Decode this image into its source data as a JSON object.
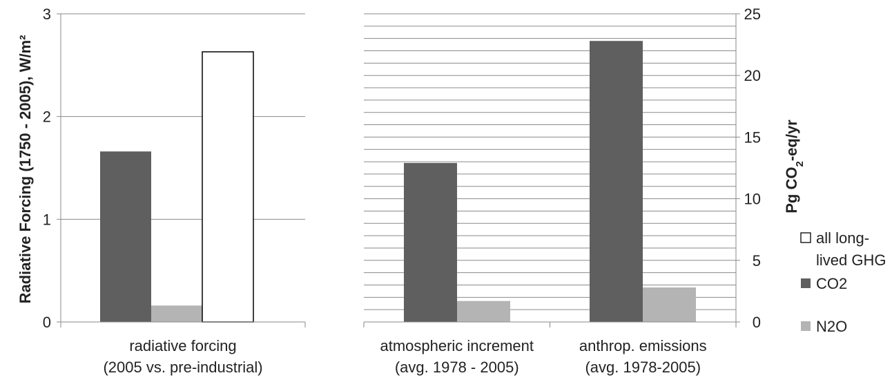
{
  "chart_data": [
    {
      "type": "bar",
      "ylabel": "Radiative Forcing (1750 - 2005), W/m²",
      "ylim": [
        0,
        3
      ],
      "yticks": [
        "0",
        "1",
        "2",
        "3"
      ],
      "grid": true,
      "categories": [
        {
          "line1": "radiative forcing",
          "line2": "(2005 vs. pre-industrial)"
        }
      ],
      "series": [
        {
          "name": "CO2",
          "color": "#5f5f5f",
          "values": [
            1.66
          ]
        },
        {
          "name": "N2O",
          "color": "#b4b4b4",
          "values": [
            0.16
          ]
        },
        {
          "name": "all long-lived GHG",
          "color": "#ffffff",
          "values": [
            2.63
          ]
        }
      ]
    },
    {
      "type": "bar",
      "ylabel_main": "Pg CO",
      "ylabel_sub": "2",
      "ylabel_tail": "-eq/yr",
      "ylim": [
        0,
        25
      ],
      "yticks": [
        "0",
        "5",
        "10",
        "15",
        "20",
        "25"
      ],
      "grid": true,
      "categories": [
        {
          "line1": "atmospheric increment",
          "line2": "(avg. 1978 - 2005)"
        },
        {
          "line1": "anthrop. emissions",
          "line2": "(avg. 1978-2005)"
        }
      ],
      "series": [
        {
          "name": "CO2",
          "color": "#5f5f5f",
          "values": [
            12.9,
            22.8
          ]
        },
        {
          "name": "N2O",
          "color": "#b4b4b4",
          "values": [
            1.7,
            2.8
          ]
        }
      ]
    }
  ],
  "legend": {
    "placement": "right",
    "items": [
      {
        "line1": "all long-",
        "line2": "lived GHG",
        "color": "#ffffff"
      },
      {
        "line1": "CO2",
        "line2": "",
        "color": "#5f5f5f"
      },
      {
        "line1": "N2O",
        "line2": "",
        "color": "#b4b4b4"
      }
    ]
  }
}
